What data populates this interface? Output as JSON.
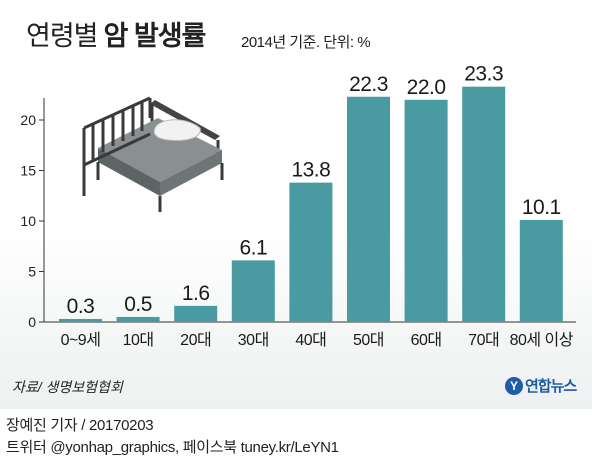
{
  "header": {
    "title_prefix": "연령별",
    "title_strong": "암 발생률",
    "unit_note": "2014년 기준. 단위: %"
  },
  "chart_data": {
    "type": "bar",
    "title": "연령별 암 발생률",
    "categories": [
      "0~9세",
      "10대",
      "20대",
      "30대",
      "40대",
      "50대",
      "60대",
      "70대",
      "80세 이상"
    ],
    "values": [
      0.3,
      0.5,
      1.6,
      6.1,
      13.8,
      22.3,
      22.0,
      23.3,
      10.1
    ],
    "value_labels": [
      "0.3",
      "0.5",
      "1.6",
      "6.1",
      "13.8",
      "22.3",
      "22.0",
      "23.3",
      "10.1"
    ],
    "yticks": [
      0,
      5,
      10,
      15,
      20
    ],
    "ytick_labels": [
      "0",
      "5",
      "10",
      "15",
      "20"
    ],
    "ylim": [
      0,
      25
    ],
    "xlabel": "",
    "ylabel": "",
    "bar_color": "#4a9aa1",
    "grid": false,
    "legend": "none"
  },
  "illustration": {
    "icon": "bed-icon"
  },
  "footer": {
    "source": "자료/ 생명보험협회",
    "logo_mark": "Y",
    "logo_name": "연합뉴스",
    "credit_line1": "장예진 기자 / 20170203",
    "credit_line2": "트위터 @yonhap_graphics, 페이스북 tuney.kr/LeYN1"
  },
  "colors": {
    "bar": "#4a9aa1",
    "axis": "#333333",
    "logo": "#1f5ca8"
  }
}
